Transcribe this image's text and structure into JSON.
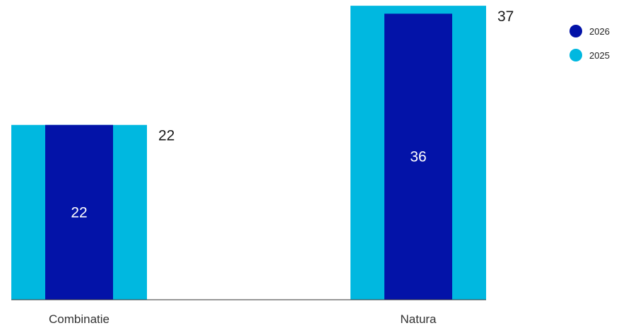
{
  "chart_data": {
    "type": "bar",
    "categories": [
      "Combinatie",
      "Natura"
    ],
    "series": [
      {
        "name": "2025",
        "values": [
          22,
          37
        ],
        "color": "#00b8e0"
      },
      {
        "name": "2026",
        "values": [
          22,
          36
        ],
        "color": "#0313a8"
      }
    ],
    "ylim": [
      0,
      38
    ],
    "grid": false,
    "legend_position": "top-right",
    "title": "",
    "xlabel": "",
    "ylabel": ""
  }
}
